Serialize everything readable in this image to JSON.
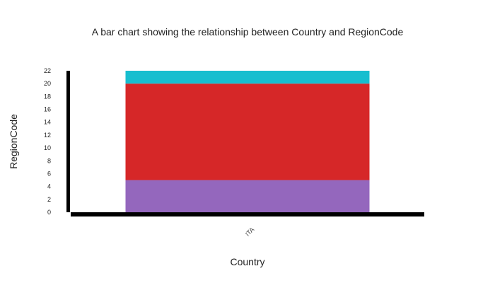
{
  "chart_data": {
    "type": "bar",
    "stacked": true,
    "title": "A bar chart showing the relationship between Country and RegionCode",
    "xlabel": "Country",
    "ylabel": "RegionCode",
    "categories": [
      "ITA"
    ],
    "ylim": [
      0,
      22
    ],
    "yticks": [
      0,
      2,
      4,
      6,
      8,
      10,
      12,
      14,
      16,
      18,
      20,
      22
    ],
    "grid": false,
    "legend": "none",
    "series": [
      {
        "values": [
          5
        ],
        "color": "#9467bd"
      },
      {
        "values": [
          15
        ],
        "color": "#d62728"
      },
      {
        "values": [
          2
        ],
        "color": "#17becf"
      }
    ]
  }
}
